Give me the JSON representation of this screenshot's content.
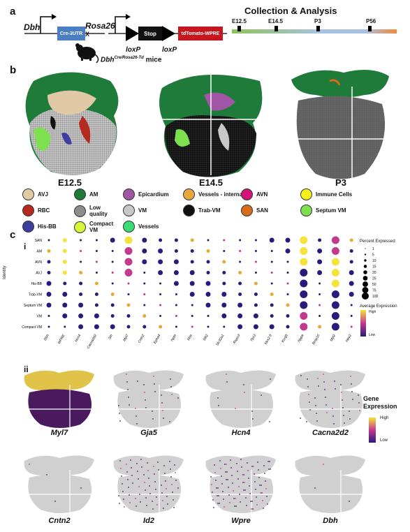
{
  "panels": {
    "a": "a",
    "b": "b",
    "c": "c",
    "ci": "i",
    "cii": "ii"
  },
  "construct": {
    "dbh": "Dbh",
    "cre_box": "Cre-3UTR",
    "x_mark": "X",
    "rosa": "Rosa26",
    "stop_box": "Stop",
    "td_box": "tdTomato-WPRE",
    "loxp1": "loxP",
    "loxp2": "loxP",
    "mice_label": "Dbh",
    "mice_label_sup": "Cre/Rosa26-Td",
    "mice_label_tail": " mice"
  },
  "timeline": {
    "title": "Collection & Analysis",
    "stages": [
      "E12.5",
      "E14.5",
      "P3",
      "P56"
    ]
  },
  "stage_labels": [
    "E12.5",
    "E14.5",
    "P3"
  ],
  "legend": [
    {
      "label": "AVJ",
      "color": "#e2c9a6"
    },
    {
      "label": "AM",
      "color": "#1e7b3a"
    },
    {
      "label": "Epicardium",
      "color": "#a255a4"
    },
    {
      "label": "Vessels - internal",
      "color": "#e6a93a"
    },
    {
      "label": "AVN",
      "color": "#d2127a"
    },
    {
      "label": "Immune Cells",
      "color": "#f7f21a"
    },
    {
      "label": "RBC",
      "color": "#b52a1d"
    },
    {
      "label": "Low quality",
      "color": "#8c8c8c"
    },
    {
      "label": "VM",
      "color": "#c8c8c8"
    },
    {
      "label": "Trab-VM",
      "color": "#111111"
    },
    {
      "label": "SAN",
      "color": "#d96b1c"
    },
    {
      "label": "Septum VM",
      "color": "#7de04f"
    },
    {
      "label": "His-BB",
      "color": "#3c3fa0"
    },
    {
      "label": "Compact VM",
      "color": "#d8f53a"
    },
    {
      "label": "Vessels",
      "color": "#3ddc74"
    }
  ],
  "dotplot": {
    "y_title": "Identity",
    "identities": [
      "SAN",
      "AM",
      "AVN",
      "AVJ",
      "His-BB",
      "Trab-VM",
      "Septum VM",
      "VM",
      "Compact VM"
    ],
    "genes": [
      "Dbh",
      "WPRE",
      "Hcn4",
      "Cacna2d2",
      "Sln",
      "Myl7",
      "Cntn2",
      "Epha4",
      "Nptn",
      "Ntm",
      "Slit2",
      "Slc32a1",
      "Rspo3",
      "Tbx3",
      "Nkx2-5",
      "Kcnj5",
      "Nppa",
      "Bmp10",
      "Myl2",
      "Hey2"
    ],
    "size_legend_title": "Percent Expressed",
    "size_legend_values": [
      "1",
      "5",
      "10",
      "15",
      "20",
      "25",
      "50",
      "75",
      "100"
    ],
    "color_legend_title": "Average Expression",
    "color_high": "High",
    "color_low": "Low"
  },
  "spatial": {
    "genes_row1": [
      "Myl7",
      "Gja5",
      "Hcn4",
      "Cacna2d2"
    ],
    "genes_row2": [
      "Cntn2",
      "Id2",
      "Wpre",
      "Dbh"
    ],
    "legend_title_1": "Gene",
    "legend_title_2": "Expression",
    "legend_high": "High",
    "legend_low": "Low"
  },
  "colors": {
    "cre_box": "#4a7fc1",
    "stop_box": "#111111",
    "td_box": "#c4161c",
    "gradient_start": "#8fc25a",
    "gradient_mid": "#a6c3e6",
    "gradient_end": "#f08a3c",
    "dot_low": "#2a1a7a",
    "dot_mid": "#c2398e",
    "dot_high": "#f5e23a"
  }
}
